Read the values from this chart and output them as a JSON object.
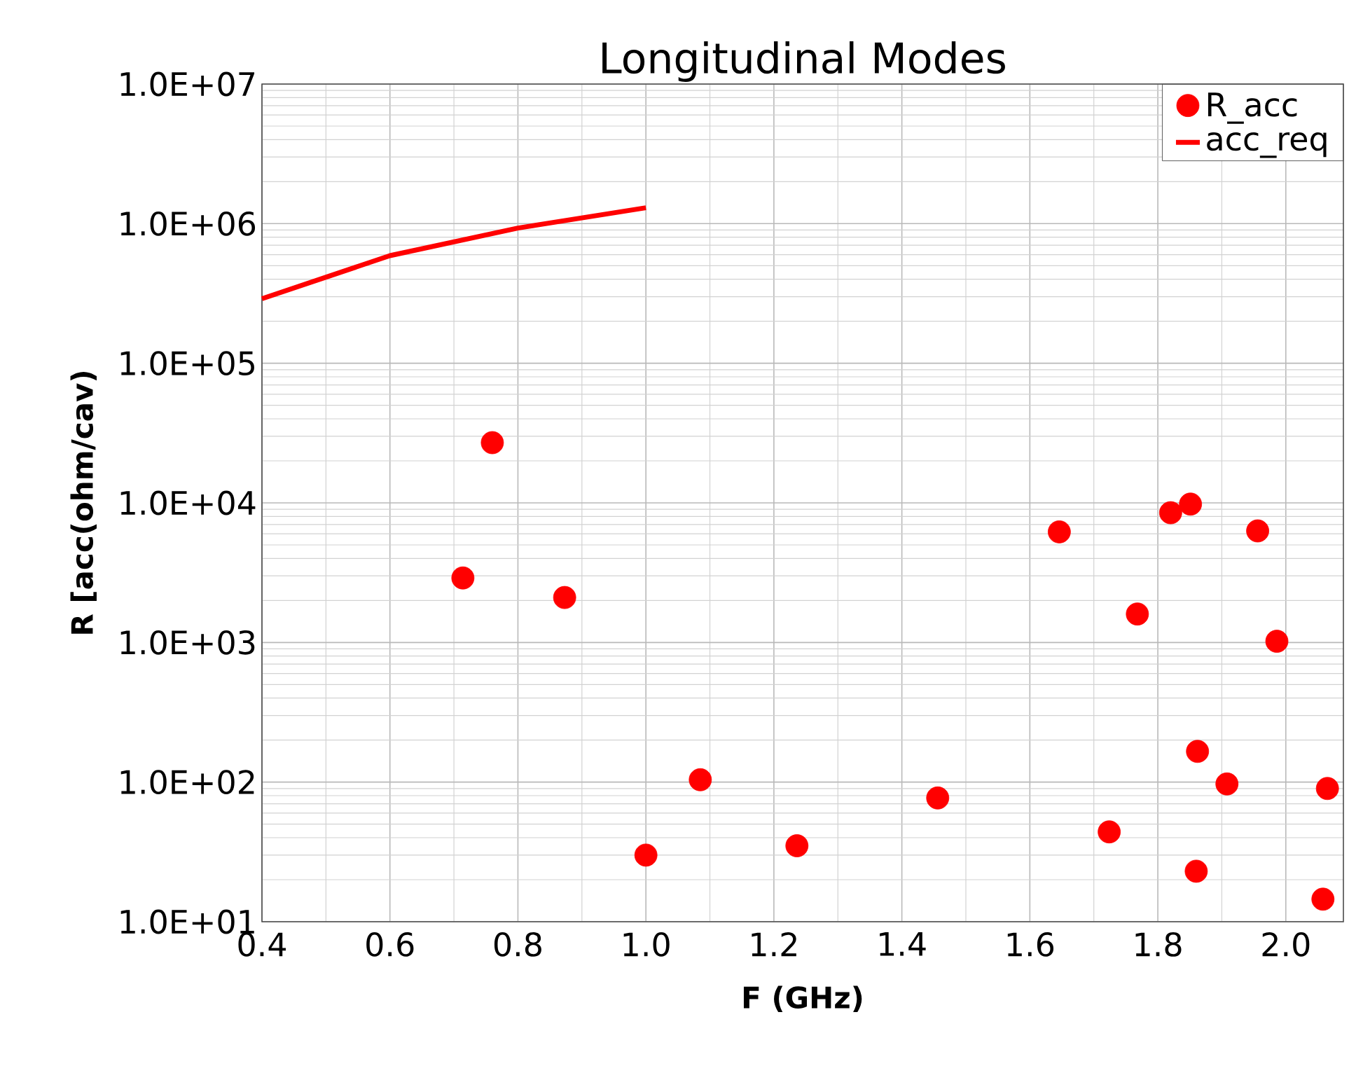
{
  "chart_data": {
    "type": "scatter",
    "title": "Longitudinal Modes",
    "xlabel": "F (GHz)",
    "ylabel": "R [acc(ohm/cav)",
    "log": "y",
    "grid": true,
    "legend": "top right",
    "xlim": [
      0.4,
      2.09
    ],
    "ylim": [
      10,
      10000000
    ],
    "xticks": [
      {
        "value": 0.4,
        "label": "0.4"
      },
      {
        "value": 0.6,
        "label": "0.6"
      },
      {
        "value": 0.8,
        "label": "0.8"
      },
      {
        "value": 1.0,
        "label": "1.0"
      },
      {
        "value": 1.2,
        "label": "1.2"
      },
      {
        "value": 1.4,
        "label": "1.4"
      },
      {
        "value": 1.6,
        "label": "1.6"
      },
      {
        "value": 1.8,
        "label": "1.8"
      },
      {
        "value": 2.0,
        "label": "2.0"
      }
    ],
    "yticks": [
      {
        "value": 10,
        "label": "1.0E+01"
      },
      {
        "value": 100,
        "label": "1.0E+02"
      },
      {
        "value": 1000,
        "label": "1.0E+03"
      },
      {
        "value": 10000,
        "label": "1.0E+04"
      },
      {
        "value": 100000,
        "label": "1.0E+05"
      },
      {
        "value": 1000000,
        "label": "1.0E+06"
      },
      {
        "value": 10000000,
        "label": "1.0E+07"
      }
    ],
    "series": [
      {
        "name": "R_acc",
        "marker": "circle",
        "color": "#ff0000",
        "x": [
          0.714,
          0.76,
          0.873,
          1.0,
          1.085,
          1.236,
          1.456,
          1.646,
          1.724,
          1.768,
          1.82,
          1.851,
          1.86,
          1.862,
          1.908,
          1.956,
          1.986,
          2.065,
          2.058
        ],
        "values": [
          2900,
          27000,
          2100,
          30,
          104,
          35,
          77,
          6200,
          44,
          1600,
          8500,
          9800,
          23,
          166,
          97,
          6300,
          1020,
          90,
          14.5
        ]
      },
      {
        "name": "acc_req",
        "type": "line",
        "marker": "none",
        "color": "#ff0000",
        "x": [
          0.4,
          0.6,
          0.8,
          1.0
        ],
        "values": [
          290000,
          590000,
          930000,
          1300000
        ]
      }
    ]
  }
}
